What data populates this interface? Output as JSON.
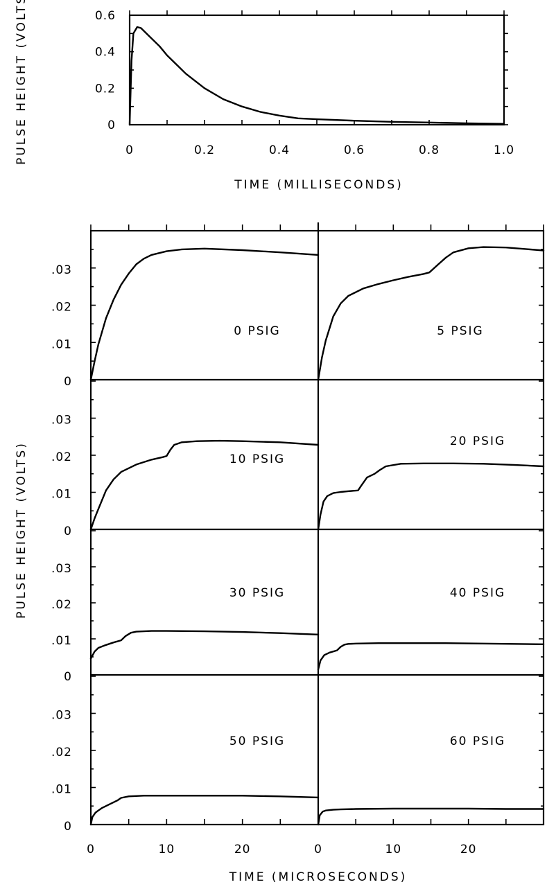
{
  "chart_data": [
    {
      "type": "line",
      "id": "overview",
      "xlabel": "TIME (MILLISECONDS)",
      "ylabel": "PULSE HEIGHT (VOLTS)",
      "xlim": [
        0,
        1.0
      ],
      "ylim": [
        0,
        0.6
      ],
      "x_ticks": [
        0,
        0.2,
        0.4,
        0.6,
        0.8,
        1.0
      ],
      "x_tick_labels": [
        "0",
        "0.2",
        "0.4",
        "0.6",
        "0.8",
        "1.0"
      ],
      "y_ticks": [
        0,
        0.2,
        0.4,
        0.6
      ],
      "y_tick_labels": [
        "0",
        "0.2",
        "0.4",
        "0.6"
      ],
      "series": [
        {
          "x": [
            0,
            0.005,
            0.01,
            0.02,
            0.03,
            0.05,
            0.08,
            0.1,
            0.15,
            0.2,
            0.25,
            0.3,
            0.35,
            0.4,
            0.45,
            0.5,
            0.6,
            0.7,
            0.8,
            0.9,
            1.0
          ],
          "y": [
            0,
            0.35,
            0.5,
            0.535,
            0.53,
            0.49,
            0.43,
            0.38,
            0.28,
            0.2,
            0.14,
            0.1,
            0.07,
            0.05,
            0.035,
            0.03,
            0.022,
            0.016,
            0.012,
            0.008,
            0.005
          ]
        }
      ]
    },
    {
      "type": "line",
      "id": "pressure-panels",
      "xlabel": "TIME (MICROSECONDS)",
      "ylabel": "PULSE HEIGHT (VOLTS)",
      "xlim": [
        0,
        30
      ],
      "ylim": [
        0,
        0.04
      ],
      "x_ticks": [
        0,
        10,
        20
      ],
      "x_tick_labels": [
        "0",
        "10",
        "20"
      ],
      "y_ticks": [
        0,
        0.01,
        0.02,
        0.03
      ],
      "y_tick_labels": [
        "0",
        ".01",
        ".02",
        ".03"
      ],
      "panels": [
        {
          "label": "0 PSIG",
          "x": [
            0,
            0.5,
            1,
            2,
            3,
            4,
            5,
            6,
            7,
            8,
            10,
            12,
            15,
            20,
            25,
            30
          ],
          "y": [
            0,
            0.005,
            0.0095,
            0.0165,
            0.0215,
            0.0255,
            0.0285,
            0.031,
            0.0325,
            0.0335,
            0.0345,
            0.035,
            0.0352,
            0.0348,
            0.0342,
            0.0335
          ]
        },
        {
          "label": "5 PSIG",
          "x": [
            0,
            0.5,
            1,
            2,
            3,
            4,
            6,
            8,
            10,
            12,
            14,
            14.8,
            16,
            17,
            18,
            20,
            22,
            25,
            30
          ],
          "y": [
            0,
            0.006,
            0.0105,
            0.017,
            0.0205,
            0.0225,
            0.0245,
            0.0257,
            0.0267,
            0.0276,
            0.0284,
            0.0288,
            0.031,
            0.0328,
            0.0342,
            0.0353,
            0.0356,
            0.0355,
            0.0347
          ]
        },
        {
          "label": "10 PSIG",
          "x": [
            0,
            0.5,
            1,
            2,
            3,
            4,
            6,
            8,
            9.5,
            10,
            10.5,
            11,
            12,
            14,
            17,
            20,
            25,
            30
          ],
          "y": [
            0,
            0.003,
            0.0055,
            0.0105,
            0.0135,
            0.0155,
            0.0175,
            0.0188,
            0.0195,
            0.0198,
            0.0215,
            0.0228,
            0.0235,
            0.0238,
            0.0239,
            0.0238,
            0.0235,
            0.0228
          ]
        },
        {
          "label": "20 PSIG",
          "x": [
            0,
            0.3,
            0.7,
            1.2,
            2,
            3,
            4,
            5.3,
            5.8,
            6.5,
            7.5,
            8.2,
            9,
            11,
            14,
            18,
            22,
            26,
            30
          ],
          "y": [
            0,
            0.004,
            0.0075,
            0.009,
            0.0098,
            0.0101,
            0.0103,
            0.0105,
            0.012,
            0.014,
            0.015,
            0.016,
            0.017,
            0.0177,
            0.0178,
            0.0178,
            0.0177,
            0.0174,
            0.017
          ]
        },
        {
          "label": "30 PSIG",
          "x": [
            0,
            0.5,
            1,
            2,
            3,
            4,
            4.6,
            5.3,
            6,
            8,
            10,
            15,
            20,
            25,
            30
          ],
          "y": [
            0.0045,
            0.0065,
            0.0075,
            0.0083,
            0.009,
            0.0096,
            0.0108,
            0.0117,
            0.012,
            0.0122,
            0.0122,
            0.0121,
            0.0119,
            0.0116,
            0.0112
          ]
        },
        {
          "label": "40 PSIG",
          "x": [
            0,
            0.3,
            0.8,
            1.5,
            2.5,
            3,
            3.5,
            4,
            5,
            8,
            12,
            17,
            22,
            26,
            30
          ],
          "y": [
            0.0015,
            0.004,
            0.0055,
            0.0062,
            0.0068,
            0.0078,
            0.0084,
            0.0086,
            0.0087,
            0.0088,
            0.0088,
            0.0088,
            0.0087,
            0.0086,
            0.0085
          ]
        },
        {
          "label": "50 PSIG",
          "x": [
            0,
            0.2,
            0.6,
            1,
            1.5,
            2.5,
            3.5,
            4,
            5,
            7,
            10,
            15,
            20,
            25,
            30
          ],
          "y": [
            0,
            0.002,
            0.0032,
            0.0038,
            0.0045,
            0.0055,
            0.0065,
            0.0072,
            0.0076,
            0.0078,
            0.0078,
            0.0078,
            0.0078,
            0.0076,
            0.0073
          ]
        },
        {
          "label": "60 PSIG",
          "x": [
            0,
            0.2,
            0.6,
            1,
            2,
            3,
            5,
            10,
            15,
            20,
            25,
            30
          ],
          "y": [
            0,
            0.0025,
            0.0035,
            0.0038,
            0.004,
            0.0041,
            0.0042,
            0.0043,
            0.0043,
            0.0043,
            0.0042,
            0.0042
          ]
        }
      ]
    }
  ]
}
